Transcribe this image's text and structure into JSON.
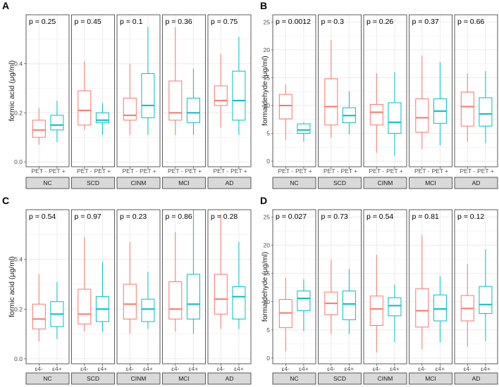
{
  "colors": {
    "red": "#f8766d",
    "cyan": "#00bfc4",
    "strip_fill": "#d9d9d9",
    "frame": "#333333",
    "grid": "#ebebeb",
    "text": "#1a1a1a",
    "tick": "#4d4d4d"
  },
  "chart_data": [
    {
      "panel": "A",
      "type": "boxplot",
      "ylabel": "formic acid (μg/ml)",
      "ylim": [
        -0.02,
        0.6
      ],
      "yticks": [
        0.0,
        0.2,
        0.4
      ],
      "ytick_labels": [
        "0.0",
        "0.2",
        "0.4"
      ],
      "categories": [
        "PET -",
        "PET +"
      ],
      "facets": [
        {
          "label": "NC",
          "p": "p = 0.25",
          "boxes": [
            [
              0.07,
              0.1,
              0.13,
              0.17,
              0.22
            ],
            [
              0.08,
              0.13,
              0.15,
              0.19,
              0.25
            ]
          ]
        },
        {
          "label": "SCD",
          "p": "p = 0.45",
          "boxes": [
            [
              0.13,
              0.15,
              0.21,
              0.29,
              0.41
            ],
            [
              0.11,
              0.16,
              0.17,
              0.2,
              0.24
            ]
          ]
        },
        {
          "label": "CINM",
          "p": "p = 0.1",
          "boxes": [
            [
              0.11,
              0.17,
              0.19,
              0.26,
              0.4
            ],
            [
              0.11,
              0.18,
              0.23,
              0.36,
              0.55
            ]
          ]
        },
        {
          "label": "MCI",
          "p": "p = 0.36",
          "boxes": [
            [
              0.11,
              0.17,
              0.2,
              0.33,
              0.55
            ],
            [
              0.11,
              0.16,
              0.2,
              0.26,
              0.38
            ]
          ]
        },
        {
          "label": "AD",
          "p": "p = 0.75",
          "boxes": [
            [
              0.14,
              0.23,
              0.25,
              0.31,
              0.44
            ],
            [
              0.11,
              0.17,
              0.25,
              0.37,
              0.51
            ]
          ]
        }
      ]
    },
    {
      "panel": "B",
      "type": "boxplot",
      "ylabel": "formaldehyde (μg/ml)",
      "ylim": [
        -1,
        26.3
      ],
      "yticks": [
        0,
        5,
        10,
        15,
        20,
        25
      ],
      "ytick_labels": [
        "0",
        "5",
        "10",
        "15",
        "20",
        "25"
      ],
      "categories": [
        "PET -",
        "PET +"
      ],
      "facets": [
        {
          "label": "NC",
          "p": "p = 0.0012",
          "boxes": [
            [
              3.8,
              7.6,
              10.0,
              12.0,
              13.8
            ],
            [
              3.5,
              5.0,
              5.6,
              6.7,
              7.0
            ]
          ]
        },
        {
          "label": "SCD",
          "p": "p = 0.3",
          "boxes": [
            [
              4.2,
              6.5,
              9.8,
              14.8,
              21.8
            ],
            [
              4.8,
              6.9,
              8.2,
              9.6,
              12.6
            ]
          ]
        },
        {
          "label": "CINM",
          "p": "p = 0.26",
          "boxes": [
            [
              1.5,
              6.5,
              8.8,
              10.2,
              15.8
            ],
            [
              1.0,
              5.0,
              7.0,
              10.5,
              16.0
            ]
          ]
        },
        {
          "label": "MCI",
          "p": "p = 0.37",
          "boxes": [
            [
              2.2,
              5.2,
              7.8,
              11.2,
              19.0
            ],
            [
              2.8,
              6.8,
              9.0,
              11.2,
              17.8
            ]
          ]
        },
        {
          "label": "AD",
          "p": "p = 0.66",
          "boxes": [
            [
              3.5,
              6.3,
              9.8,
              12.4,
              15.8
            ],
            [
              3.2,
              6.3,
              8.5,
              11.4,
              16.2
            ]
          ]
        }
      ]
    },
    {
      "panel": "C",
      "type": "boxplot",
      "ylabel": "formic acid (μg/ml)",
      "ylim": [
        -0.02,
        0.6
      ],
      "yticks": [
        0.0,
        0.2,
        0.4
      ],
      "ytick_labels": [
        "0.0",
        "0.2",
        "0.4"
      ],
      "categories": [
        "ε4-",
        "ε4+"
      ],
      "facets": [
        {
          "label": "NC",
          "p": "p = 0.54",
          "boxes": [
            [
              0.07,
              0.12,
              0.16,
              0.22,
              0.34
            ],
            [
              0.08,
              0.13,
              0.18,
              0.23,
              0.31
            ]
          ]
        },
        {
          "label": "SCD",
          "p": "p = 0.97",
          "boxes": [
            [
              0.11,
              0.14,
              0.18,
              0.28,
              0.49
            ],
            [
              0.11,
              0.15,
              0.2,
              0.25,
              0.39
            ]
          ]
        },
        {
          "label": "CINM",
          "p": "p = 0.23",
          "boxes": [
            [
              0.1,
              0.16,
              0.22,
              0.3,
              0.47
            ],
            [
              0.12,
              0.15,
              0.2,
              0.24,
              0.35
            ]
          ]
        },
        {
          "label": "MCI",
          "p": "p = 0.86",
          "boxes": [
            [
              0.11,
              0.16,
              0.2,
              0.31,
              0.51
            ],
            [
              0.1,
              0.16,
              0.22,
              0.34,
              0.6
            ]
          ]
        },
        {
          "label": "AD",
          "p": "p = 0.28",
          "boxes": [
            [
              0.12,
              0.18,
              0.24,
              0.34,
              0.58
            ],
            [
              0.12,
              0.16,
              0.25,
              0.29,
              0.47
            ]
          ]
        }
      ]
    },
    {
      "panel": "D",
      "type": "boxplot",
      "ylabel": "formaldehyde (μg/ml)",
      "ylim": [
        -1,
        26.3
      ],
      "yticks": [
        0,
        5,
        10,
        15,
        20,
        25
      ],
      "ytick_labels": [
        "0",
        "5",
        "10",
        "15",
        "20",
        "25"
      ],
      "categories": [
        "ε4-",
        "ε4+"
      ],
      "facets": [
        {
          "label": "NC",
          "p": "p = 0.027",
          "boxes": [
            [
              1.2,
              5.4,
              8.0,
              10.4,
              14.2
            ],
            [
              4.8,
              8.4,
              10.6,
              11.9,
              14.0
            ]
          ]
        },
        {
          "label": "SCD",
          "p": "p = 0.73",
          "boxes": [
            [
              4.3,
              7.7,
              9.7,
              11.7,
              17.4
            ],
            [
              4.3,
              6.8,
              9.6,
              11.9,
              15.8
            ]
          ]
        },
        {
          "label": "CINM",
          "p": "p = 0.54",
          "boxes": [
            [
              1.0,
              5.8,
              8.7,
              11.0,
              18.3
            ],
            [
              2.8,
              7.5,
              9.3,
              10.7,
              13.0
            ]
          ]
        },
        {
          "label": "MCI",
          "p": "p = 0.81",
          "boxes": [
            [
              1.6,
              5.5,
              8.4,
              12.3,
              21.8
            ],
            [
              2.8,
              6.6,
              8.7,
              11.2,
              14.5
            ]
          ]
        },
        {
          "label": "AD",
          "p": "p = 0.12",
          "boxes": [
            [
              2.0,
              6.6,
              8.8,
              11.1,
              16.7
            ],
            [
              3.0,
              7.9,
              9.5,
              12.7,
              19.3
            ]
          ]
        }
      ]
    }
  ]
}
